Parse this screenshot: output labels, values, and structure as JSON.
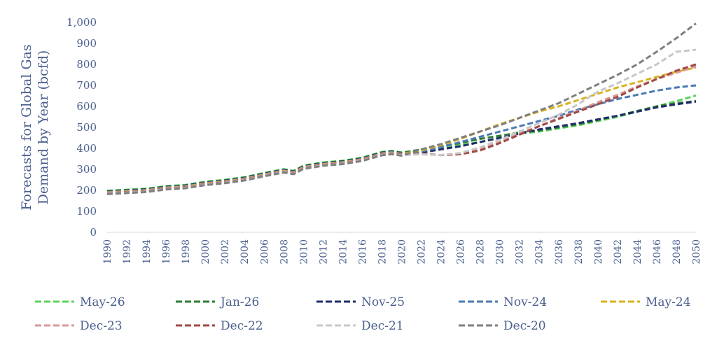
{
  "chart_data": {
    "type": "line",
    "title": "",
    "ylabel": "Forecasts for Global Gas Demand by Year (bcfd)",
    "ylabel_lines": [
      "Forecasts for Global Gas",
      "Demand by Year (bcfd)"
    ],
    "xlabel": "",
    "xlim": [
      1990,
      2050
    ],
    "ylim": [
      0,
      1000
    ],
    "y_ticks": [
      0,
      100,
      200,
      300,
      400,
      500,
      600,
      700,
      800,
      900,
      1000
    ],
    "y_tick_labels": [
      "0",
      "100",
      "200",
      "300",
      "400",
      "500",
      "600",
      "700",
      "800",
      "900",
      "1,000"
    ],
    "x_ticks": [
      1990,
      1992,
      1994,
      1996,
      1998,
      2000,
      2002,
      2004,
      2006,
      2008,
      2010,
      2012,
      2014,
      2016,
      2018,
      2020,
      2022,
      2024,
      2026,
      2028,
      2030,
      2032,
      2034,
      2036,
      2038,
      2040,
      2042,
      2044,
      2046,
      2048,
      2050
    ],
    "x_tick_labels": [
      "1990",
      "1992",
      "1994",
      "1996",
      "1998",
      "2000",
      "2002",
      "2004",
      "2006",
      "2008",
      "2010",
      "2012",
      "2014",
      "2016",
      "2018",
      "2020",
      "2022",
      "2024",
      "2026",
      "2028",
      "2030",
      "2032",
      "2034",
      "2036",
      "2038",
      "2040",
      "2042",
      "2044",
      "2046",
      "2048",
      "2050"
    ],
    "grid": false,
    "legend_position": "bottom",
    "history": {
      "x": [
        1990,
        1992,
        1994,
        1996,
        1998,
        2000,
        2002,
        2004,
        2006,
        2008,
        2009,
        2010,
        2012,
        2014,
        2016,
        2018,
        2019,
        2020
      ],
      "y": [
        190,
        195,
        200,
        212,
        218,
        233,
        242,
        255,
        275,
        293,
        285,
        310,
        325,
        333,
        348,
        375,
        380,
        373
      ]
    },
    "series": [
      {
        "name": "May-26",
        "color": "#5cd35c",
        "x": [
          2020,
          2024,
          2026,
          2028,
          2030,
          2032,
          2034,
          2036,
          2038,
          2040,
          2042,
          2044,
          2046,
          2048,
          2050
        ],
        "y": [
          373,
          400,
          415,
          430,
          450,
          470,
          480,
          495,
          510,
          530,
          550,
          575,
          600,
          625,
          652
        ]
      },
      {
        "name": "Jan-26",
        "color": "#2e7d32",
        "x": [
          2020,
          2024,
          2026,
          2028,
          2030,
          2032,
          2034,
          2036,
          2038,
          2040,
          2042,
          2044,
          2046,
          2048,
          2050
        ],
        "y": [
          373,
          410,
          425,
          445,
          460,
          475,
          485,
          500,
          515,
          535,
          555,
          578,
          600,
          615,
          625
        ]
      },
      {
        "name": "Nov-25",
        "color": "#1f2d6b",
        "x": [
          2020,
          2022,
          2024,
          2026,
          2028,
          2030,
          2032,
          2034,
          2036,
          2038,
          2040,
          2042,
          2044,
          2046,
          2048,
          2050
        ],
        "y": [
          373,
          380,
          395,
          410,
          430,
          450,
          470,
          490,
          505,
          520,
          538,
          555,
          575,
          595,
          610,
          623
        ]
      },
      {
        "name": "Nov-24",
        "color": "#4a7ab5",
        "x": [
          2020,
          2022,
          2024,
          2026,
          2028,
          2030,
          2032,
          2034,
          2036,
          2038,
          2040,
          2042,
          2044,
          2046,
          2048,
          2050
        ],
        "y": [
          373,
          385,
          405,
          430,
          455,
          480,
          505,
          530,
          555,
          585,
          610,
          635,
          655,
          675,
          690,
          700
        ]
      },
      {
        "name": "May-24",
        "color": "#d9b31e",
        "x": [
          2020,
          2022,
          2024,
          2026,
          2028,
          2030,
          2032,
          2034,
          2036,
          2038,
          2040,
          2042,
          2044,
          2046,
          2048,
          2050
        ],
        "y": [
          373,
          390,
          415,
          445,
          480,
          515,
          545,
          575,
          600,
          630,
          660,
          690,
          715,
          740,
          765,
          785
        ]
      },
      {
        "name": "Dec-23",
        "color": "#d9999b",
        "x": [
          2020,
          2022,
          2024,
          2026,
          2028,
          2030,
          2032,
          2034,
          2036,
          2038,
          2040,
          2042,
          2044,
          2046,
          2048,
          2050
        ],
        "y": [
          373,
          372,
          368,
          375,
          395,
          430,
          470,
          505,
          545,
          580,
          620,
          655,
          695,
          730,
          760,
          790
        ]
      },
      {
        "name": "Dec-22",
        "color": "#a04a45",
        "x": [
          2020,
          2022,
          2024,
          2026,
          2028,
          2030,
          2032,
          2034,
          2036,
          2038,
          2040,
          2042,
          2044,
          2046,
          2048,
          2050
        ],
        "y": [
          373,
          375,
          368,
          372,
          390,
          425,
          465,
          505,
          540,
          575,
          610,
          645,
          690,
          730,
          770,
          800
        ]
      },
      {
        "name": "Dec-21",
        "color": "#c8c8c8",
        "x": [
          2020,
          2022,
          2024,
          2026,
          2028,
          2030,
          2032,
          2034,
          2036,
          2038,
          2040,
          2042,
          2044,
          2046,
          2048,
          2050
        ],
        "y": [
          373,
          372,
          368,
          378,
          405,
          440,
          480,
          520,
          560,
          610,
          670,
          710,
          755,
          800,
          860,
          870
        ]
      },
      {
        "name": "Dec-20",
        "color": "#7f7f7f",
        "x": [
          2020,
          2022,
          2024,
          2026,
          2028,
          2030,
          2032,
          2034,
          2036,
          2038,
          2040,
          2042,
          2044,
          2046,
          2048,
          2050
        ],
        "y": [
          373,
          395,
          420,
          450,
          480,
          510,
          545,
          580,
          615,
          660,
          705,
          750,
          800,
          860,
          925,
          995
        ]
      }
    ]
  }
}
